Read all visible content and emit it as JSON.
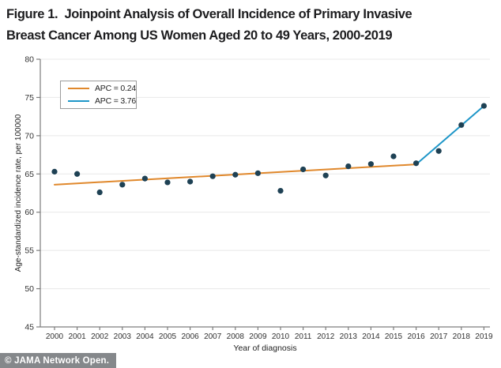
{
  "title": {
    "line1": "Figure 1.  Joinpoint Analysis of Overall Incidence of Primary Invasive",
    "line2": "Breast Cancer Among US Women Aged 20 to 49 Years, 2000-2019"
  },
  "footer": {
    "credit": "© JAMA Network Open."
  },
  "colors": {
    "accent_orange": "#e0882c",
    "accent_blue": "#1e96c8",
    "point": "#1e4154",
    "grid": "#e8e8e8",
    "axis": "#7d7d7d",
    "tick_text": "#333333",
    "banner_bg": "#85888b",
    "title_text": "#1d1d1f"
  },
  "chart_data": {
    "type": "scatter",
    "title": "",
    "xlabel": "Year of diagnosis",
    "ylabel": "Age-standardized incidence rate, per 100000",
    "x": [
      2000,
      2001,
      2002,
      2003,
      2004,
      2005,
      2006,
      2007,
      2008,
      2009,
      2010,
      2011,
      2012,
      2013,
      2014,
      2015,
      2016,
      2017,
      2018,
      2019
    ],
    "y": [
      65.3,
      65.0,
      62.6,
      63.6,
      64.4,
      63.9,
      64.0,
      64.7,
      64.9,
      65.1,
      62.8,
      65.6,
      64.8,
      66.0,
      66.3,
      67.3,
      66.4,
      68.0,
      71.4,
      73.9
    ],
    "point_color": "#1e4154",
    "ylim": [
      45,
      80
    ],
    "yticks": [
      45,
      50,
      55,
      60,
      65,
      70,
      75,
      80
    ],
    "grid": true,
    "legend_position": "top-left",
    "trend_segments": [
      {
        "label": "APC = 0.24",
        "color": "#e0882c",
        "x": [
          2000,
          2016
        ],
        "y": [
          63.6,
          66.25
        ]
      },
      {
        "label": "APC = 3.76",
        "color": "#1e96c8",
        "x": [
          2016,
          2019
        ],
        "y": [
          66.25,
          73.9
        ]
      }
    ],
    "joinpoint_year": 2016
  }
}
